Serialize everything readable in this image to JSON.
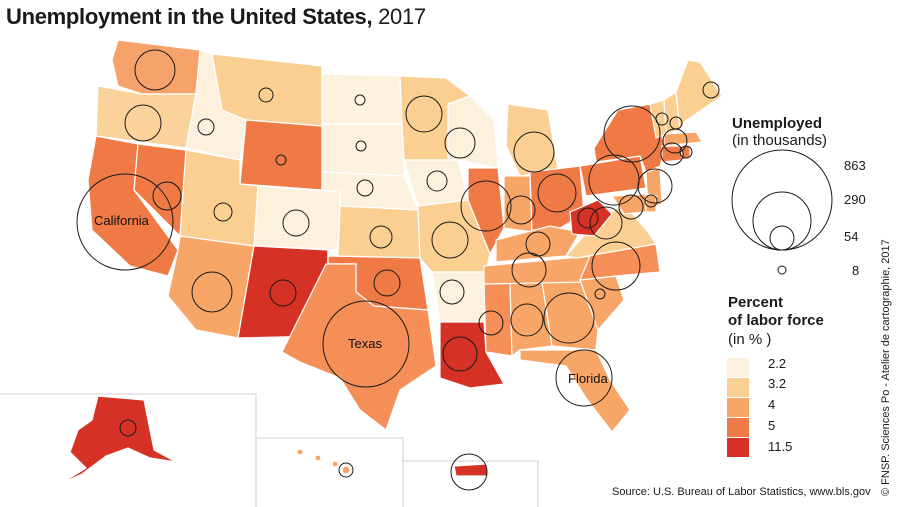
{
  "title": {
    "main": "Unemployment in the United States,",
    "year": "2017"
  },
  "legend_size": {
    "title": "Unemployed",
    "subtitle": "(in thousands)",
    "values": [
      "863",
      "290",
      "54",
      "8"
    ]
  },
  "legend_color": {
    "title_line1": "Percent",
    "title_line2": "of labor force",
    "title_line3": "(in % )",
    "classes": [
      {
        "label": "2.2",
        "color": "#fdf1de"
      },
      {
        "label": "3.2",
        "color": "#fbcf92"
      },
      {
        "label": "4",
        "color": "#f8a667"
      },
      {
        "label": "5",
        "color": "#ef7a45"
      },
      {
        "label": "11.5",
        "color": "#d63125"
      }
    ]
  },
  "labels": {
    "california": "California",
    "texas": "Texas",
    "florida": "Florida"
  },
  "source": "Source: U.S. Bureau of Labor Statistics, www.bls.gov",
  "credit": "© FNSP. Sciences Po - Atelier de cartographie, 2017"
}
